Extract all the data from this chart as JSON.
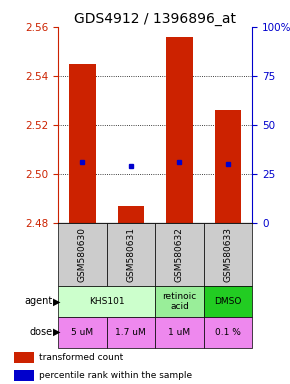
{
  "title": "GDS4912 / 1396896_at",
  "samples": [
    "GSM580630",
    "GSM580631",
    "GSM580632",
    "GSM580633"
  ],
  "bar_bottoms": [
    2.48,
    2.48,
    2.48,
    2.48
  ],
  "bar_tops": [
    2.545,
    2.487,
    2.556,
    2.526
  ],
  "blue_dot_values": [
    2.505,
    2.503,
    2.505,
    2.504
  ],
  "ylim_left": [
    2.48,
    2.56
  ],
  "ylim_right": [
    0,
    100
  ],
  "yticks_left": [
    2.48,
    2.5,
    2.52,
    2.54,
    2.56
  ],
  "yticks_right": [
    0,
    25,
    50,
    75,
    100
  ],
  "bar_color": "#cc2200",
  "dot_color": "#0000cc",
  "bar_width": 0.55,
  "agent_groups": [
    {
      "label": "KHS101",
      "cols": [
        0,
        1
      ],
      "color": "#ccffcc"
    },
    {
      "label": "retinoic\nacid",
      "cols": [
        2
      ],
      "color": "#99ee99"
    },
    {
      "label": "DMSO",
      "cols": [
        3
      ],
      "color": "#22cc22"
    }
  ],
  "dose_labels": [
    "5 uM",
    "1.7 uM",
    "1 uM",
    "0.1 %"
  ],
  "dose_color": "#ee88ee",
  "sample_bg_color": "#cccccc",
  "title_fontsize": 10,
  "tick_fontsize": 7.5,
  "sample_fontsize": 6.5,
  "agent_dose_fontsize": 6.5,
  "legend_fontsize": 6.5
}
